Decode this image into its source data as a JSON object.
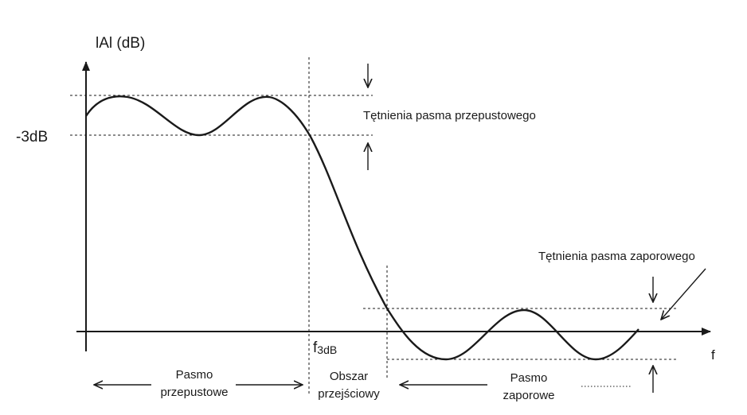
{
  "axes": {
    "y_label": "lAl (dB)",
    "x_label": "f"
  },
  "levels": {
    "minus3db": "-3dB",
    "f3db_main": "f",
    "f3db_sub": "3dB"
  },
  "annotations": {
    "passband_ripple": "Tętnienia pasma przepustowego",
    "stopband_ripple": "Tętnienia pasma zaporowego"
  },
  "regions": {
    "passband_line1": "Pasmo",
    "passband_line2": "przepustowe",
    "transition_line1": "Obszar",
    "transition_line2": "przejściowy",
    "stopband_line1": "Pasmo",
    "stopband_line2": "zaporowe"
  },
  "colors": {
    "ink": "#1a1a1a",
    "background": "#ffffff"
  }
}
